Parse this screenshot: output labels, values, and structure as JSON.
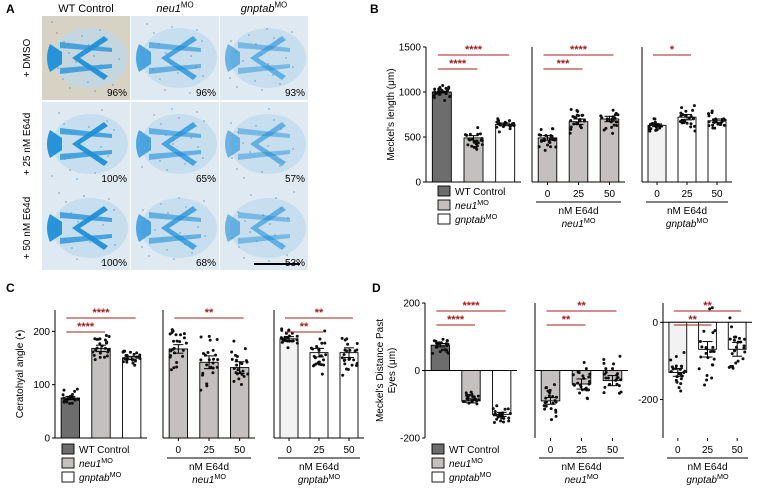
{
  "panel_letters": {
    "a": "A",
    "b": "B",
    "c": "C",
    "d": "D"
  },
  "panelA": {
    "columns": [
      "WT Control",
      "neu1",
      "gnptab"
    ],
    "column_superscripts": [
      "",
      "MO",
      "MO"
    ],
    "rows": [
      "+ DMSO",
      "+ 25 nM E64d",
      "+ 50 nM E64d"
    ],
    "percents": [
      [
        "96%",
        "96%",
        "93%"
      ],
      [
        "100%",
        "65%",
        "57%"
      ],
      [
        "100%",
        "68%",
        "53%"
      ]
    ],
    "stain_color": "#1f8fd8"
  },
  "legend": {
    "items": [
      {
        "label": "WT Control",
        "sup": "",
        "italic": false,
        "color": "#6d6d6d"
      },
      {
        "label": "neu1",
        "sup": "MO",
        "italic": true,
        "color": "#c4c0c0"
      },
      {
        "label": "gnptab",
        "sup": "MO",
        "italic": true,
        "color": "#ffffff"
      }
    ]
  },
  "colors": {
    "sig": "#a02020",
    "wt": "#6d6d6d",
    "neu1": "#c4c0c0",
    "gnptab": "#ffffff",
    "gnptab_light": "#f2f2f2"
  },
  "chart_data": [
    {
      "id": "B1",
      "type": "bar",
      "ylabel": "Meckel's length (μm)",
      "ylim": [
        0,
        1500
      ],
      "yticks": [
        0,
        500,
        1000,
        1500
      ],
      "categories": [
        "WT Control",
        "neu1MO",
        "gnptabMO"
      ],
      "values": [
        1000,
        490,
        640
      ],
      "errors": [
        10,
        25,
        15
      ],
      "significance": [
        {
          "from": 0,
          "to": 1,
          "label": "****"
        },
        {
          "from": 0,
          "to": 2,
          "label": "****"
        }
      ]
    },
    {
      "id": "B2",
      "type": "bar",
      "xlabel": "nM E64d",
      "group_label": "neu1",
      "group_sup": "MO",
      "ylim": [
        0,
        1500
      ],
      "categories": [
        "0",
        "25",
        "50"
      ],
      "values": [
        490,
        670,
        700
      ],
      "errors": [
        25,
        30,
        30
      ],
      "significance": [
        {
          "from": 0,
          "to": 1,
          "label": "***"
        },
        {
          "from": 0,
          "to": 2,
          "label": "****"
        }
      ]
    },
    {
      "id": "B3",
      "type": "bar",
      "xlabel": "nM E64d",
      "group_label": "gnptab",
      "group_sup": "MO",
      "ylim": [
        0,
        1500
      ],
      "categories": [
        "0",
        "25",
        "50"
      ],
      "values": [
        630,
        720,
        680
      ],
      "errors": [
        15,
        30,
        20
      ],
      "significance": [
        {
          "from": 0,
          "to": 1,
          "label": "*"
        }
      ]
    },
    {
      "id": "C1",
      "type": "bar",
      "ylabel": "Ceratohyal angle (•)",
      "ylim": [
        0,
        240
      ],
      "yticks": [
        0,
        100,
        200
      ],
      "categories": [
        "WT Control",
        "neu1MO",
        "gnptabMO"
      ],
      "values": [
        75,
        168,
        150
      ],
      "errors": [
        3,
        6,
        3
      ],
      "significance": [
        {
          "from": 0,
          "to": 1,
          "label": "****"
        },
        {
          "from": 0,
          "to": 2,
          "label": "****"
        }
      ]
    },
    {
      "id": "C2",
      "type": "bar",
      "xlabel": "nM E64d",
      "group_label": "neu1",
      "group_sup": "MO",
      "ylim": [
        0,
        240
      ],
      "categories": [
        "0",
        "25",
        "50"
      ],
      "values": [
        167,
        142,
        132
      ],
      "errors": [
        8,
        12,
        11
      ],
      "significance": [
        {
          "from": 0,
          "to": 2,
          "label": "**"
        }
      ]
    },
    {
      "id": "C3",
      "type": "bar",
      "xlabel": "nM E64d",
      "group_label": "gnptab",
      "group_sup": "MO",
      "ylim": [
        0,
        240
      ],
      "categories": [
        "0",
        "25",
        "50"
      ],
      "values": [
        186,
        160,
        160
      ],
      "errors": [
        4,
        8,
        9
      ],
      "significance": [
        {
          "from": 0,
          "to": 1,
          "label": "**"
        },
        {
          "from": 0,
          "to": 2,
          "label": "**"
        }
      ]
    },
    {
      "id": "D1",
      "type": "bar",
      "ylabel": "Meckel's Distance Past Eyes (μm)",
      "ylim": [
        -200,
        200
      ],
      "yticks": [
        -200,
        0,
        200
      ],
      "categories": [
        "WT Control",
        "neu1MO",
        "gnptabMO"
      ],
      "values": [
        75,
        -90,
        -130
      ],
      "errors": [
        5,
        6,
        6
      ],
      "significance": [
        {
          "from": 0,
          "to": 1,
          "label": "****"
        },
        {
          "from": 0,
          "to": 2,
          "label": "****"
        }
      ]
    },
    {
      "id": "D2",
      "type": "bar",
      "xlabel": "nM E64d",
      "group_label": "neu1",
      "group_sup": "MO",
      "ylim": [
        -200,
        200
      ],
      "categories": [
        "0",
        "25",
        "50"
      ],
      "values": [
        -90,
        -40,
        -30
      ],
      "errors": [
        10,
        15,
        15
      ],
      "significance": [
        {
          "from": 0,
          "to": 1,
          "label": "**"
        },
        {
          "from": 0,
          "to": 2,
          "label": "**"
        }
      ]
    },
    {
      "id": "D3",
      "type": "bar",
      "xlabel": "nM E64d",
      "group_label": "gnptab",
      "group_sup": "MO",
      "ylim": [
        -300,
        50
      ],
      "yticks": [
        -200,
        0
      ],
      "categories": [
        "0",
        "25",
        "50"
      ],
      "values": [
        -130,
        -70,
        -70
      ],
      "errors": [
        10,
        20,
        18
      ],
      "significance": [
        {
          "from": 0,
          "to": 1,
          "label": "**"
        },
        {
          "from": 0,
          "to": 2,
          "label": "**"
        }
      ]
    }
  ]
}
